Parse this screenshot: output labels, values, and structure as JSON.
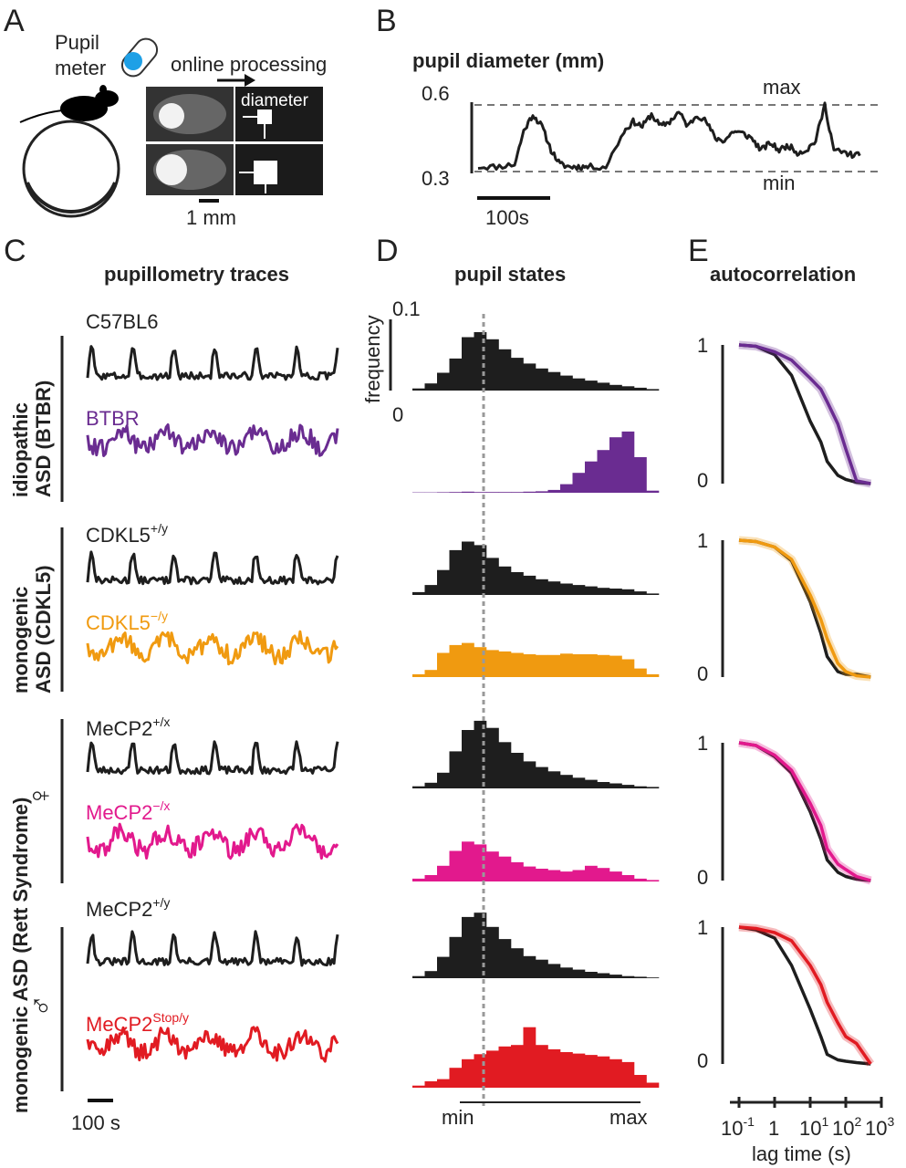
{
  "colors": {
    "black": "#1e1e1e",
    "btbr": "#6a2c91",
    "cdkl5_ko": "#f09a10",
    "mecp2_female_ko": "#e2198d",
    "mecp2_stop": "#e11b22",
    "gray": "#888888"
  },
  "panel_letters": {
    "a": "A",
    "b": "B",
    "c": "C",
    "d": "D",
    "e": "E"
  },
  "panel_a": {
    "pupil_meter_line1": "Pupil",
    "pupil_meter_line2": "meter",
    "online_processing": "online processing",
    "diameter": "diameter",
    "scale_bar": "1 mm",
    "icons": [
      "mouse-icon",
      "treadmill-wheel-icon",
      "pupil-meter-icon",
      "eye-image-icon",
      "arrow-right-icon"
    ]
  },
  "panel_b": {
    "title": "pupil diameter (mm)",
    "y_top": "0.6",
    "y_bottom": "0.3",
    "max_label": "max",
    "min_label": "min",
    "time_bar": "100s"
  },
  "panel_c": {
    "title": "pupillometry traces",
    "time_bar": "100 s",
    "group_idiopathic_line1": "idiopathic",
    "group_idiopathic_line2": "ASD (BTBR)",
    "group_cdkl5_line1": "monogenic",
    "group_cdkl5_line2": "ASD (CDKL5)",
    "group_rett": "monogenic ASD (Rett Syndrome)",
    "female_symbol": "♀",
    "male_symbol": "♂",
    "traces": [
      {
        "base": "C57BL6",
        "sup": ""
      },
      {
        "base": "BTBR",
        "sup": ""
      },
      {
        "base": "CDKL5",
        "sup": "+/y"
      },
      {
        "base": "CDKL5",
        "sup": "−/y"
      },
      {
        "base": "MeCP2",
        "sup": "+/x"
      },
      {
        "base": "MeCP2",
        "sup": "−/x"
      },
      {
        "base": "MeCP2",
        "sup": "+/y"
      },
      {
        "base": "MeCP2",
        "sup": "Stop/y"
      }
    ]
  },
  "panel_d": {
    "title": "pupil states",
    "ylabel": "frequency",
    "y_top": "0.1",
    "y_bottom": "0",
    "x_min": "min",
    "x_max": "max"
  },
  "panel_e": {
    "title": "autocorrelation",
    "y_one": "1",
    "y_zero": "0",
    "xlabel": "lag time (s)",
    "x_ticks": [
      {
        "base": "10",
        "exp": "-1"
      },
      {
        "base": "1",
        "exp": ""
      },
      {
        "base": "10",
        "exp": "1"
      },
      {
        "base": "10",
        "exp": "2"
      },
      {
        "base": "10",
        "exp": "3"
      }
    ]
  },
  "chart_data": [
    {
      "type": "line",
      "panel": "B",
      "title": "pupil diameter (mm)",
      "ylim": [
        0.3,
        0.6
      ],
      "reference_lines": [
        {
          "label": "max",
          "y": 0.59
        },
        {
          "label": "min",
          "y": 0.31
        }
      ],
      "series": [
        {
          "x": [
            0,
            20,
            40,
            50,
            60,
            70,
            80,
            90,
            100,
            110,
            120,
            140,
            160,
            170,
            180,
            190,
            200,
            210,
            220,
            230,
            240,
            250,
            260,
            270,
            280,
            290,
            300,
            310,
            320,
            330,
            340,
            350,
            360,
            370,
            380,
            390,
            400,
            410,
            420
          ],
          "values": [
            0.33,
            0.33,
            0.34,
            0.48,
            0.55,
            0.5,
            0.4,
            0.34,
            0.33,
            0.33,
            0.33,
            0.33,
            0.48,
            0.52,
            0.5,
            0.55,
            0.5,
            0.52,
            0.56,
            0.5,
            0.55,
            0.52,
            0.45,
            0.44,
            0.48,
            0.47,
            0.45,
            0.4,
            0.43,
            0.4,
            0.42,
            0.39,
            0.4,
            0.44,
            0.59,
            0.4,
            0.39,
            0.38,
            0.38
          ]
        }
      ]
    },
    {
      "type": "bar",
      "panel": "D",
      "title": "pupil states",
      "ylabel": "frequency",
      "ylim": [
        0,
        0.1
      ],
      "x_range": [
        "min",
        "max"
      ],
      "series": [
        {
          "name": "C57BL6",
          "values": [
            0.003,
            0.01,
            0.025,
            0.045,
            0.075,
            0.082,
            0.072,
            0.058,
            0.046,
            0.038,
            0.031,
            0.026,
            0.021,
            0.017,
            0.014,
            0.011,
            0.008,
            0.006,
            0.004,
            0.002
          ]
        },
        {
          "name": "BTBR",
          "values": [
            0.0005,
            0.0005,
            0.0008,
            0.001,
            0.0015,
            0.001,
            0.001,
            0.001,
            0.001,
            0.0015,
            0.002,
            0.004,
            0.012,
            0.028,
            0.044,
            0.06,
            0.078,
            0.086,
            0.05,
            0.003
          ]
        },
        {
          "name": "CDKL5+/y",
          "values": [
            0.004,
            0.014,
            0.035,
            0.063,
            0.075,
            0.07,
            0.052,
            0.04,
            0.032,
            0.027,
            0.022,
            0.019,
            0.016,
            0.014,
            0.012,
            0.01,
            0.009,
            0.008,
            0.005,
            0.002
          ]
        },
        {
          "name": "CDKL5−/y",
          "values": [
            0.004,
            0.01,
            0.034,
            0.045,
            0.048,
            0.042,
            0.038,
            0.036,
            0.034,
            0.032,
            0.031,
            0.031,
            0.033,
            0.032,
            0.032,
            0.031,
            0.03,
            0.025,
            0.012,
            0.004
          ]
        },
        {
          "name": "MeCP2+/x",
          "values": [
            0.003,
            0.008,
            0.022,
            0.052,
            0.082,
            0.095,
            0.085,
            0.065,
            0.05,
            0.038,
            0.03,
            0.024,
            0.019,
            0.015,
            0.012,
            0.009,
            0.007,
            0.005,
            0.003,
            0.002
          ]
        },
        {
          "name": "MeCP2−/x",
          "values": [
            0.004,
            0.009,
            0.022,
            0.043,
            0.056,
            0.052,
            0.042,
            0.035,
            0.027,
            0.021,
            0.018,
            0.016,
            0.014,
            0.016,
            0.022,
            0.019,
            0.014,
            0.009,
            0.004,
            0.002
          ]
        },
        {
          "name": "MeCP2+/y",
          "values": [
            0.003,
            0.01,
            0.03,
            0.058,
            0.086,
            0.092,
            0.072,
            0.055,
            0.042,
            0.031,
            0.026,
            0.02,
            0.015,
            0.012,
            0.009,
            0.007,
            0.005,
            0.003,
            0.002,
            0.001
          ]
        },
        {
          "name": "MeCP2Stop/y",
          "values": [
            0.003,
            0.009,
            0.012,
            0.028,
            0.04,
            0.047,
            0.052,
            0.058,
            0.06,
            0.085,
            0.06,
            0.054,
            0.05,
            0.048,
            0.046,
            0.044,
            0.04,
            0.036,
            0.018,
            0.007
          ]
        }
      ]
    },
    {
      "type": "line",
      "panel": "E",
      "title": "autocorrelation",
      "xlabel": "lag time (s)",
      "x_scale": "log",
      "xlim": [
        0.1,
        1000
      ],
      "ylim": [
        0,
        1
      ],
      "x": [
        0.1,
        0.3,
        1,
        3,
        10,
        20,
        30,
        60,
        100,
        200,
        500
      ],
      "series": [
        {
          "name": "C57BL6",
          "values": [
            1.0,
            0.99,
            0.93,
            0.78,
            0.45,
            0.3,
            0.16,
            0.06,
            0.03,
            0.01,
            0.0
          ]
        },
        {
          "name": "BTBR",
          "values": [
            1.0,
            0.99,
            0.95,
            0.89,
            0.76,
            0.68,
            0.59,
            0.43,
            0.25,
            0.02,
            0.0
          ]
        },
        {
          "name": "CDKL5+/y",
          "values": [
            1.0,
            0.99,
            0.95,
            0.85,
            0.55,
            0.32,
            0.15,
            0.04,
            0.02,
            0.02,
            0.0
          ]
        },
        {
          "name": "CDKL5−/y",
          "values": [
            1.0,
            0.99,
            0.95,
            0.86,
            0.6,
            0.42,
            0.28,
            0.1,
            0.04,
            0.01,
            0.0
          ]
        },
        {
          "name": "MeCP2+/x",
          "values": [
            1.0,
            0.98,
            0.9,
            0.78,
            0.5,
            0.3,
            0.15,
            0.06,
            0.03,
            0.01,
            0.0
          ]
        },
        {
          "name": "MeCP2−/x",
          "values": [
            1.0,
            0.98,
            0.91,
            0.8,
            0.56,
            0.4,
            0.23,
            0.12,
            0.08,
            0.03,
            0.0
          ]
        },
        {
          "name": "MeCP2+/y",
          "values": [
            1.0,
            0.98,
            0.92,
            0.72,
            0.4,
            0.2,
            0.07,
            0.03,
            0.02,
            0.01,
            0.0
          ]
        },
        {
          "name": "MeCP2Stop/y",
          "values": [
            1.0,
            0.99,
            0.96,
            0.9,
            0.72,
            0.58,
            0.45,
            0.3,
            0.2,
            0.15,
            0.0
          ]
        }
      ]
    }
  ]
}
